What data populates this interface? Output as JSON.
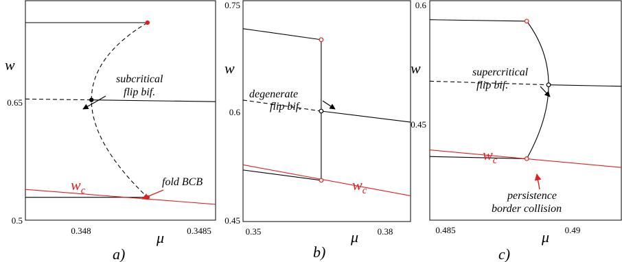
{
  "chart_data": [
    {
      "type": "line",
      "panel_label": "a)",
      "xlabel": "μ",
      "ylabel": "w",
      "xlim": [
        0.34765,
        0.3486
      ],
      "ylim": [
        0.5,
        0.75
      ],
      "x_ticks": [
        {
          "value": 0.348,
          "label": "0.348"
        },
        {
          "value": 0.3485,
          "label": "0.3485"
        }
      ],
      "y_ticks": [
        {
          "value": 0.65,
          "label": "0.65"
        },
        {
          "value": 0.5,
          "label": "0.5"
        }
      ],
      "series": [
        {
          "style": "solid",
          "color": "#000000",
          "points": [
            [
              0.34765,
              0.725
            ],
            [
              0.34826,
              0.725
            ]
          ]
        },
        {
          "style": "solid",
          "color": "#000000",
          "points": [
            [
              0.34798,
              0.637
            ],
            [
              0.3486,
              0.635
            ]
          ]
        },
        {
          "style": "dashed",
          "color": "#000000",
          "points": [
            [
              0.34765,
              0.638
            ],
            [
              0.34798,
              0.637
            ]
          ]
        },
        {
          "style": "dashed",
          "color": "#000000",
          "curve": "arc",
          "points": [
            [
              0.34826,
              0.725
            ],
            [
              0.34798,
              0.637
            ],
            [
              0.34826,
              0.526
            ]
          ]
        },
        {
          "style": "solid",
          "color": "#000000",
          "points": [
            [
              0.34765,
              0.526
            ],
            [
              0.34826,
              0.526
            ]
          ]
        },
        {
          "style": "solid",
          "color": "#e02020",
          "points": [
            [
              0.34765,
              0.535
            ],
            [
              0.3486,
              0.518
            ]
          ]
        }
      ],
      "points": [
        {
          "x": 0.34826,
          "y": 0.725,
          "fill": "#e02020",
          "hollow": false
        },
        {
          "x": 0.34798,
          "y": 0.637,
          "fill": "#000000",
          "hollow": false
        },
        {
          "x": 0.34826,
          "y": 0.526,
          "fill": "#e02020",
          "hollow": false
        }
      ],
      "annotations": [
        {
          "lines": [
            "subcritical",
            "flip bif."
          ],
          "target": [
            0.34798,
            0.637
          ]
        },
        {
          "lines": [
            "fold BCB"
          ],
          "target": [
            0.34826,
            0.526
          ]
        }
      ],
      "curve_label": "wc"
    },
    {
      "type": "line",
      "panel_label": "b)",
      "xlabel": "μ",
      "ylabel": "w",
      "xlim": [
        0.35,
        0.3875
      ],
      "ylim": [
        0.45,
        0.75
      ],
      "x_ticks": [
        {
          "value": 0.35,
          "label": "0.35"
        },
        {
          "value": 0.38,
          "label": "0.38"
        }
      ],
      "y_ticks": [
        {
          "value": 0.75,
          "label": "0.75"
        },
        {
          "value": 0.6,
          "label": "0.6"
        },
        {
          "value": 0.45,
          "label": "0.45"
        }
      ],
      "series": [
        {
          "style": "solid",
          "color": "#000000",
          "points": [
            [
              0.35,
              0.712
            ],
            [
              0.3675,
              0.697
            ]
          ]
        },
        {
          "style": "solid",
          "color": "#000000",
          "points": [
            [
              0.3675,
              0.697
            ],
            [
              0.3675,
              0.506
            ]
          ]
        },
        {
          "style": "dashed",
          "color": "#000000",
          "points": [
            [
              0.35,
              0.615
            ],
            [
              0.3675,
              0.6
            ]
          ]
        },
        {
          "style": "solid",
          "color": "#000000",
          "points": [
            [
              0.3675,
              0.6
            ],
            [
              0.3875,
              0.585
            ]
          ]
        },
        {
          "style": "solid",
          "color": "#000000",
          "points": [
            [
              0.35,
              0.52
            ],
            [
              0.3675,
              0.506
            ]
          ]
        },
        {
          "style": "solid",
          "color": "#e02020",
          "points": [
            [
              0.35,
              0.527
            ],
            [
              0.3875,
              0.485
            ]
          ]
        }
      ],
      "points": [
        {
          "x": 0.3675,
          "y": 0.697,
          "fill": "#e02020",
          "hollow": true
        },
        {
          "x": 0.3675,
          "y": 0.6,
          "fill": "#000000",
          "hollow": true
        },
        {
          "x": 0.3675,
          "y": 0.506,
          "fill": "#e02020",
          "hollow": true
        }
      ],
      "annotations": [
        {
          "lines": [
            "degenerate",
            "flip bif."
          ],
          "target": [
            0.3675,
            0.6
          ]
        }
      ],
      "curve_label": "wc"
    },
    {
      "type": "line",
      "panel_label": "c)",
      "xlabel": "μ",
      "ylabel": "w",
      "xlim": [
        0.4845,
        0.4924
      ],
      "ylim": [
        0.3,
        0.6
      ],
      "x_ticks": [
        {
          "value": 0.485,
          "label": "0.485"
        },
        {
          "value": 0.49,
          "label": "0.49"
        }
      ],
      "y_ticks": [
        {
          "value": 0.6,
          "label": "0.6"
        },
        {
          "value": 0.45,
          "label": "0.45"
        }
      ],
      "series": [
        {
          "style": "solid",
          "color": "#000000",
          "points": [
            [
              0.4845,
              0.574
            ],
            [
              0.4885,
              0.572
            ]
          ]
        },
        {
          "style": "solid",
          "color": "#000000",
          "curve": "arc",
          "points": [
            [
              0.4885,
              0.572
            ],
            [
              0.4894,
              0.485
            ],
            [
              0.4885,
              0.384
            ]
          ]
        },
        {
          "style": "dashed",
          "color": "#000000",
          "points": [
            [
              0.4845,
              0.49
            ],
            [
              0.4894,
              0.485
            ]
          ]
        },
        {
          "style": "solid",
          "color": "#000000",
          "points": [
            [
              0.4894,
              0.485
            ],
            [
              0.4924,
              0.483
            ]
          ]
        },
        {
          "style": "solid",
          "color": "#000000",
          "points": [
            [
              0.4845,
              0.387
            ],
            [
              0.4885,
              0.384
            ]
          ]
        },
        {
          "style": "solid",
          "color": "#e02020",
          "points": [
            [
              0.4845,
              0.396
            ],
            [
              0.4924,
              0.372
            ]
          ]
        }
      ],
      "points": [
        {
          "x": 0.4885,
          "y": 0.572,
          "fill": "#e02020",
          "hollow": true
        },
        {
          "x": 0.4894,
          "y": 0.485,
          "fill": "#000000",
          "hollow": true
        },
        {
          "x": 0.4885,
          "y": 0.384,
          "fill": "#e02020",
          "hollow": true
        }
      ],
      "annotations": [
        {
          "lines": [
            "supercritical",
            "flip bif."
          ],
          "target": [
            0.4894,
            0.485
          ]
        },
        {
          "lines": [
            "persistence",
            "border collision"
          ],
          "target": [
            0.4885,
            0.384
          ]
        }
      ],
      "curve_label": "wc"
    }
  ]
}
